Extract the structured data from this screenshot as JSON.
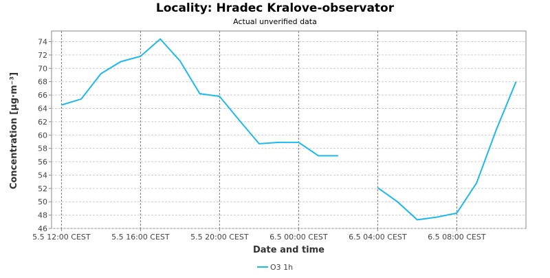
{
  "chart_data": {
    "type": "line",
    "title": "Locality: Hradec Kralove-observator",
    "subtitle": "Actual unverified data",
    "xlabel": "Date and time",
    "ylabel": "Concentration [µg·m⁻³]",
    "x": [
      "5.5 12:00",
      "5.5 13:00",
      "5.5 14:00",
      "5.5 15:00",
      "5.5 16:00",
      "5.5 17:00",
      "5.5 18:00",
      "5.5 19:00",
      "5.5 20:00",
      "5.5 21:00",
      "5.5 22:00",
      "5.5 23:00",
      "6.5 00:00",
      "6.5 01:00",
      "6.5 02:00",
      "6.5 03:00",
      "6.5 04:00",
      "6.5 05:00",
      "6.5 06:00",
      "6.5 07:00",
      "6.5 08:00",
      "6.5 09:00",
      "6.5 10:00",
      "6.5 11:00"
    ],
    "series": [
      {
        "name": "O3 1h",
        "color": "#1cb9ea",
        "values": [
          64.5,
          65.4,
          69.2,
          71.0,
          71.8,
          74.4,
          71.1,
          66.2,
          65.8,
          62.2,
          58.7,
          58.9,
          58.9,
          56.9,
          56.9,
          null,
          52.1,
          50.0,
          47.3,
          47.7,
          48.3,
          52.8,
          60.8,
          68.0
        ]
      }
    ],
    "xlim": [
      "5.5 11:30",
      "6.5 11:30"
    ],
    "xticks": [
      {
        "value": "5.5 12:00",
        "label": "5.5 12:00 CEST"
      },
      {
        "value": "5.5 16:00",
        "label": "5.5 16:00 CEST"
      },
      {
        "value": "5.5 20:00",
        "label": "5.5 20:00 CEST"
      },
      {
        "value": "6.5 00:00",
        "label": "6.5 00:00 CEST"
      },
      {
        "value": "6.5 04:00",
        "label": "6.5 04:00 CEST"
      },
      {
        "value": "6.5 08:00",
        "label": "6.5 08:00 CEST"
      }
    ],
    "ylim": [
      46,
      75.6
    ],
    "yticks": [
      46,
      48,
      50,
      52,
      54,
      56,
      58,
      60,
      62,
      64,
      66,
      68,
      70,
      72,
      74
    ],
    "grid": true,
    "legend": "bottom"
  }
}
